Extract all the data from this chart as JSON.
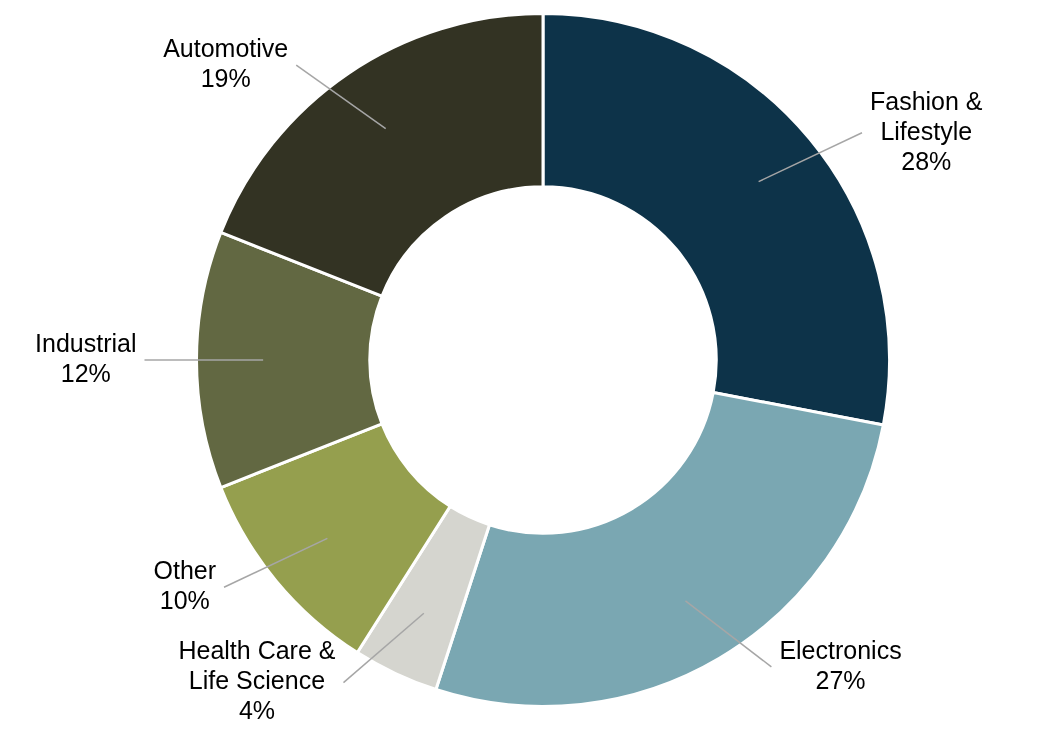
{
  "chart_data": {
    "type": "donut",
    "categories": [
      "Fashion & Lifestyle",
      "Electronics",
      "Health Care & Life Science",
      "Other",
      "Industrial",
      "Automotive"
    ],
    "values": [
      28,
      27,
      4,
      10,
      12,
      19
    ],
    "value_labels": [
      "28%",
      "27%",
      "4%",
      "10%",
      "12%",
      "19%"
    ],
    "colors": [
      "#0d3349",
      "#7aa7b2",
      "#d5d5cf",
      "#959f4e",
      "#626842",
      "#333323"
    ],
    "legend": false
  }
}
